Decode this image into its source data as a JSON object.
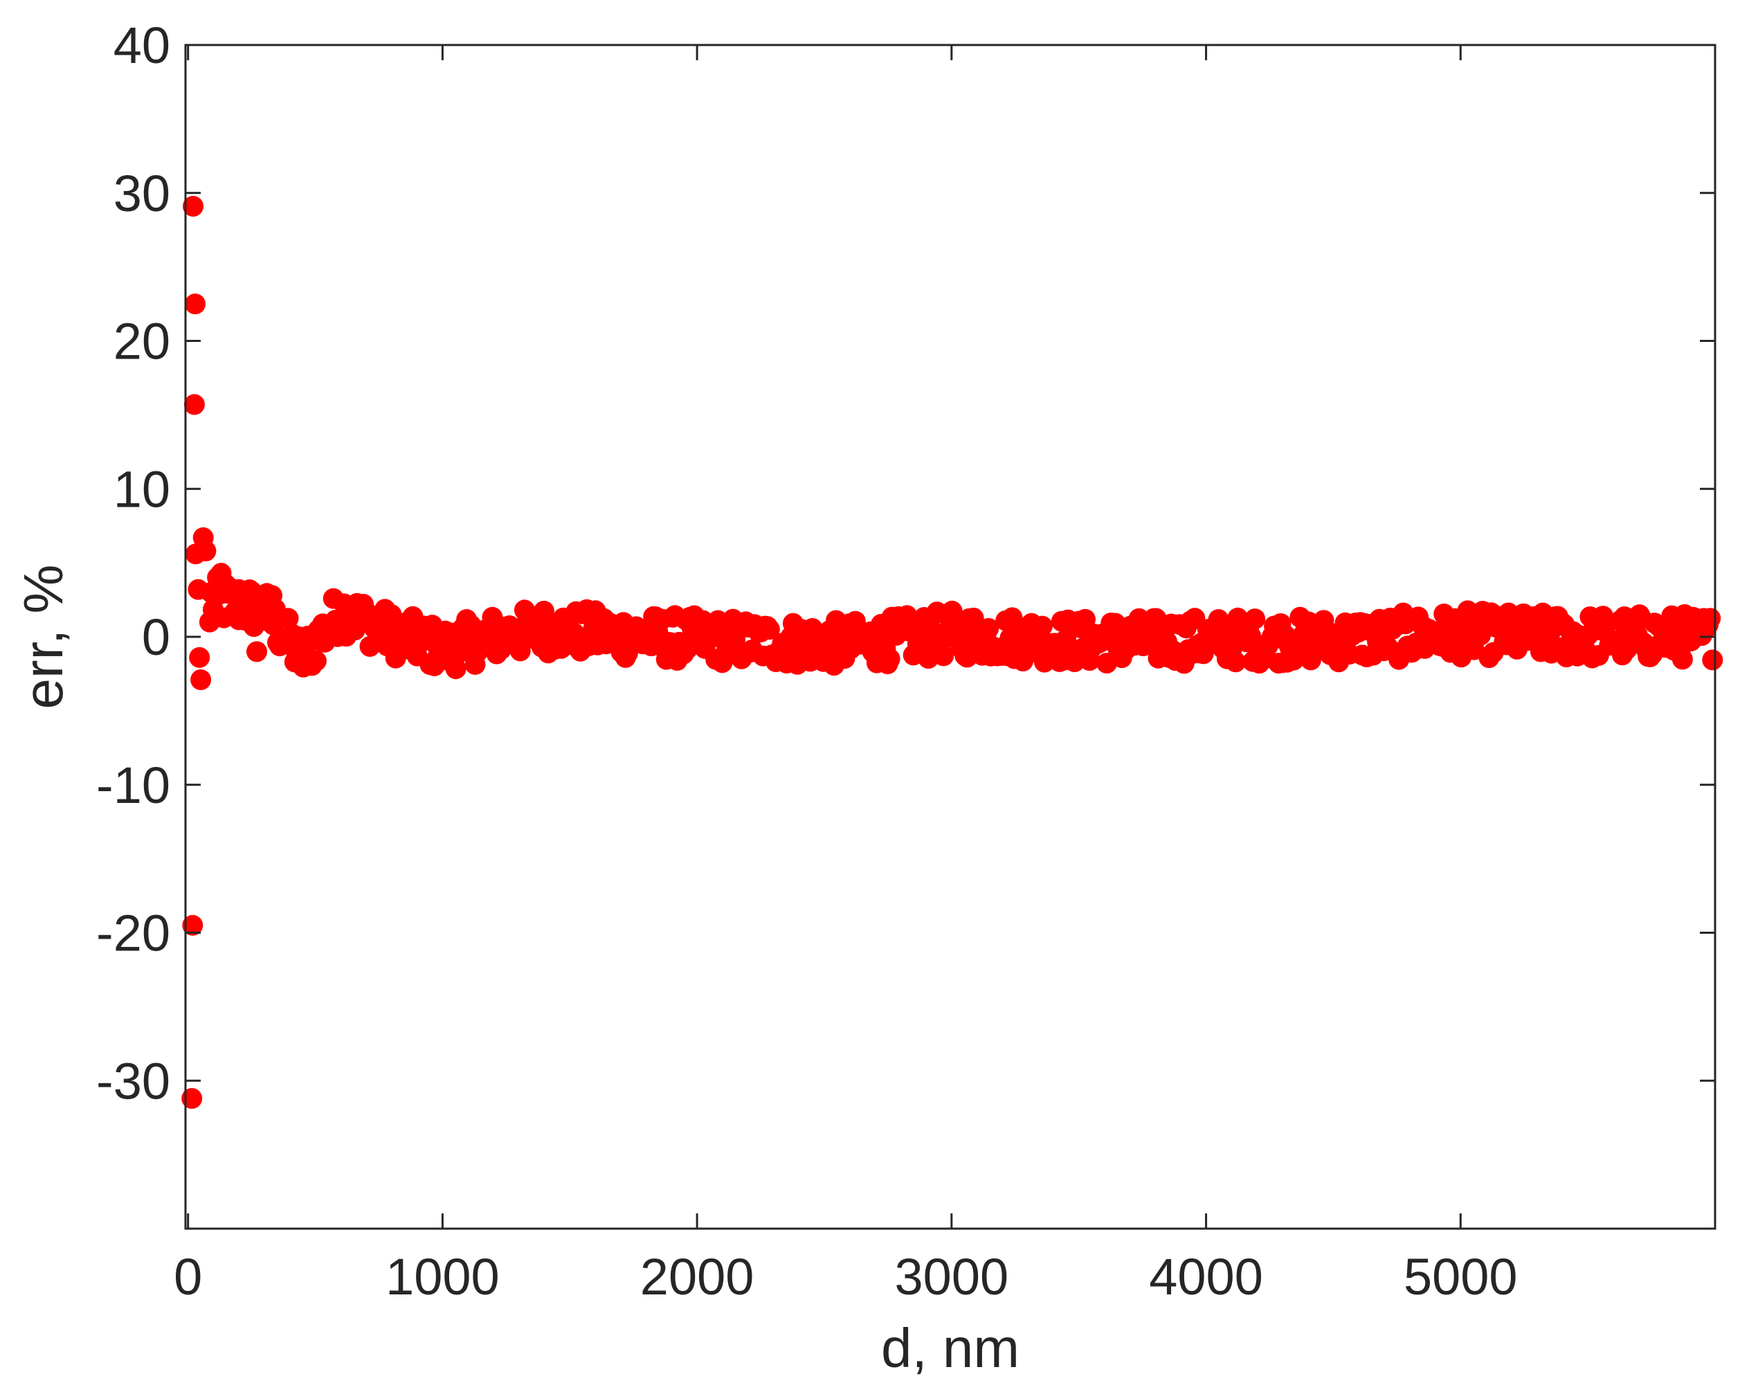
{
  "chart_data": {
    "type": "scatter",
    "title": "",
    "xlabel": "d, nm",
    "ylabel": "err, %",
    "xlim": [
      -10,
      6000
    ],
    "ylim": [
      -40,
      40
    ],
    "xticks": [
      0,
      1000,
      2000,
      3000,
      4000,
      5000
    ],
    "xtick_labels": [
      "0",
      "1000",
      "2000",
      "3000",
      "4000",
      "5000"
    ],
    "yticks": [
      -30,
      -20,
      -10,
      0,
      10,
      20,
      30,
      40
    ],
    "ytick_labels": [
      "-30",
      "-20",
      "-10",
      "0",
      "10",
      "20",
      "30",
      "40"
    ],
    "grid": false,
    "box": true,
    "marker": "filled-circle",
    "marker_color": "#ff0000",
    "axis_color": "#262626",
    "outliers": [
      {
        "x": 20,
        "y": 29.1
      },
      {
        "x": 28,
        "y": 22.5
      },
      {
        "x": 25,
        "y": 15.7
      },
      {
        "x": 18,
        "y": -19.5
      },
      {
        "x": 15,
        "y": -31.2
      },
      {
        "x": 30,
        "y": 5.6
      },
      {
        "x": 60,
        "y": 6.7
      },
      {
        "x": 70,
        "y": 5.8
      },
      {
        "x": 40,
        "y": 3.2
      },
      {
        "x": 45,
        "y": -1.4
      },
      {
        "x": 50,
        "y": -2.9
      },
      {
        "x": 85,
        "y": 1.0
      },
      {
        "x": 130,
        "y": 4.3
      },
      {
        "x": 200,
        "y": 3.2
      },
      {
        "x": 270,
        "y": -1.0
      },
      {
        "x": 330,
        "y": 2.8
      }
    ],
    "profile": [
      {
        "x": 90,
        "y": 2.5
      },
      {
        "x": 300,
        "y": 1.8
      },
      {
        "x": 450,
        "y": -1.5
      },
      {
        "x": 600,
        "y": 1.8
      },
      {
        "x": 800,
        "y": 0.2
      },
      {
        "x": 1000,
        "y": -0.8
      },
      {
        "x": 1200,
        "y": 0.0
      },
      {
        "x": 1400,
        "y": 0.5
      },
      {
        "x": 1800,
        "y": 0.0
      },
      {
        "x": 2200,
        "y": -0.3
      },
      {
        "x": 2600,
        "y": -0.5
      },
      {
        "x": 3000,
        "y": 0.2
      },
      {
        "x": 3500,
        "y": -0.3
      },
      {
        "x": 4000,
        "y": -0.2
      },
      {
        "x": 4500,
        "y": -0.2
      },
      {
        "x": 5000,
        "y": 0.2
      },
      {
        "x": 5500,
        "y": 0.0
      },
      {
        "x": 5990,
        "y": 0.0
      }
    ],
    "band_points": 700,
    "band_spread": 1.6
  }
}
